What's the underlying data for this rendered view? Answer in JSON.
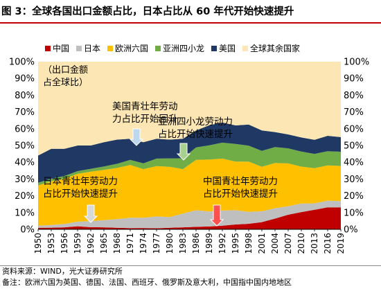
{
  "title": "图 3：全球各国出口金额占比，日本占比从 60 年代开始快速提升",
  "footer": {
    "source": "资料来源：WIND，光大证券研究所",
    "note": "备注：欧洲六国为英国、德国、法国、西班牙、俄罗斯及意大利，中国指中国内地地区"
  },
  "colors": {
    "title_rule": "#c00000",
    "axis": "#000000"
  },
  "chart_data": {
    "type": "area",
    "stacked": true,
    "x": [
      1950,
      1953,
      1956,
      1959,
      1962,
      1965,
      1968,
      1971,
      1974,
      1977,
      1980,
      1983,
      1986,
      1989,
      1992,
      1995,
      1998,
      2001,
      2004,
      2007,
      2010,
      2013,
      2016,
      2019
    ],
    "x_tick_labels": [
      "1950",
      "1953",
      "1956",
      "1959",
      "1962",
      "1965",
      "1968",
      "1971",
      "1974",
      "1977",
      "1980",
      "1983",
      "1986",
      "1989",
      "1992",
      "1995",
      "1998",
      "2001",
      "2004",
      "2007",
      "2010",
      "2013",
      "2016",
      "2019"
    ],
    "y_tick_labels": [
      "0%",
      "10%",
      "20%",
      "30%",
      "40%",
      "50%",
      "60%",
      "70%",
      "80%",
      "90%",
      "100%"
    ],
    "ylim": [
      0,
      100
    ],
    "y_unit": "%",
    "axis_note": "（出口金额\n占全球比）",
    "legend_position": "top",
    "series": [
      {
        "name": "中国",
        "color": "#c00000",
        "values": [
          0.9,
          1.0,
          1.2,
          1.8,
          1.3,
          1.2,
          0.9,
          0.7,
          0.8,
          0.6,
          0.9,
          1.2,
          1.5,
          1.7,
          2.2,
          2.9,
          3.3,
          4.3,
          6.4,
          8.7,
          10.3,
          11.7,
          13.1,
          13.1
        ]
      },
      {
        "name": "日本",
        "color": "#bfbfbf",
        "values": [
          1.3,
          1.6,
          2.0,
          2.8,
          3.6,
          4.3,
          5.2,
          6.2,
          6.1,
          7.1,
          6.4,
          8.2,
          9.9,
          8.9,
          9.0,
          8.5,
          7.1,
          6.5,
          6.2,
          5.1,
          5.1,
          3.8,
          4.0,
          3.7
        ]
      },
      {
        "name": "欧洲六国",
        "color": "#ffc000",
        "values": [
          24.0,
          26.0,
          27.0,
          28.5,
          29.5,
          30.0,
          30.5,
          31.5,
          29.0,
          30.0,
          30.0,
          26.5,
          30.0,
          31.0,
          31.0,
          29.0,
          30.0,
          26.5,
          27.0,
          25.5,
          22.0,
          21.0,
          21.0,
          21.0
        ]
      },
      {
        "name": "亚洲四小龙",
        "color": "#70ad47",
        "values": [
          1.6,
          1.6,
          1.6,
          1.6,
          1.7,
          2.0,
          2.5,
          3.0,
          3.5,
          4.5,
          5.0,
          6.5,
          7.5,
          8.5,
          9.5,
          10.5,
          9.5,
          9.5,
          9.5,
          9.0,
          9.0,
          8.5,
          8.5,
          8.5
        ]
      },
      {
        "name": "美国",
        "color": "#1f3864",
        "values": [
          16.2,
          17.8,
          16.2,
          15.3,
          13.9,
          14.5,
          14.4,
          12.6,
          12.6,
          11.8,
          11.2,
          11.6,
          10.1,
          12.0,
          12.0,
          11.1,
          12.6,
          12.2,
          8.9,
          8.3,
          8.4,
          8.4,
          9.2,
          8.7
        ]
      },
      {
        "name": "全球其余国家",
        "color": "#fce7b4",
        "values": [
          56.0,
          52.0,
          52.0,
          50.0,
          50.0,
          48.0,
          46.5,
          46.0,
          48.0,
          46.0,
          46.5,
          46.0,
          41.0,
          37.9,
          36.3,
          38.0,
          37.5,
          41.0,
          42.0,
          43.4,
          45.2,
          46.6,
          44.2,
          45.0
        ]
      }
    ],
    "annotations": [
      {
        "lines": [
          "美国青壮年劳动",
          "力占比开始回升"
        ],
        "year": 1973,
        "arrow": "down",
        "arrow_color": "#bdd7ee"
      },
      {
        "lines": [
          "亚洲四小龙劳动力",
          "占比开始快速提升"
        ],
        "year": 1984,
        "arrow": "down",
        "arrow_color": "#a9d18e"
      },
      {
        "lines": [
          "日本青壮年劳动力",
          "占比开始快速提升"
        ],
        "year": 1965,
        "arrow": "down",
        "arrow_color": "#d9d9d9"
      },
      {
        "lines": [
          "中国青壮年劳动力",
          "占比开始快速提升"
        ],
        "year": 1990,
        "arrow": "down",
        "arrow_color": "#ff5050"
      }
    ]
  }
}
